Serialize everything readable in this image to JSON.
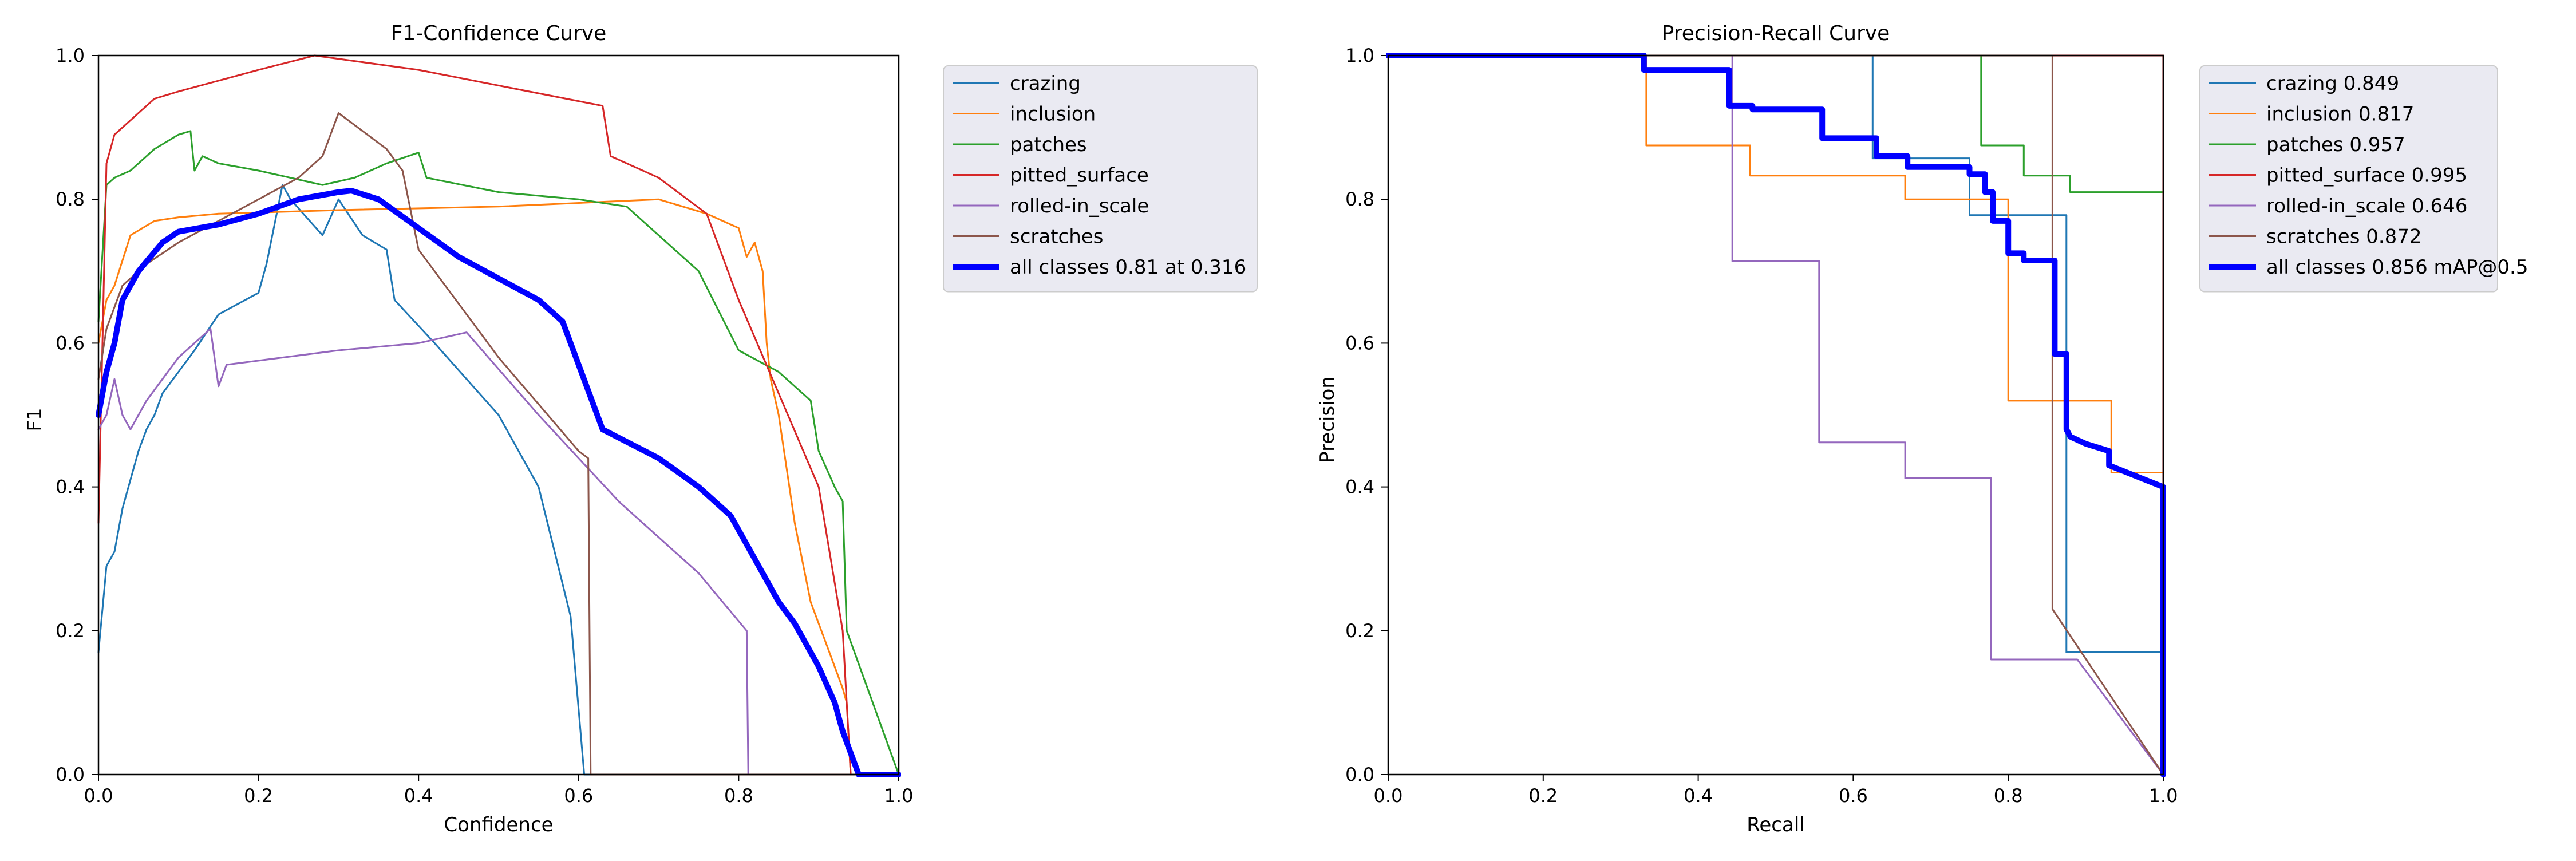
{
  "colors": {
    "crazing": "#1f77b4",
    "inclusion": "#ff7f0e",
    "patches": "#2ca02c",
    "pitted_surface": "#d62728",
    "rolled-in_scale": "#9467bd",
    "scratches": "#8c564b",
    "all_classes": "#0000ff",
    "legend_bg": "#eaeaf2"
  },
  "chart_data": [
    {
      "type": "line",
      "title": "F1-Confidence Curve",
      "xlabel": "Confidence",
      "ylabel": "F1",
      "xlim": [
        0,
        1
      ],
      "ylim": [
        0,
        1
      ],
      "xticks": [
        "0.0",
        "0.2",
        "0.4",
        "0.6",
        "0.8",
        "1.0"
      ],
      "yticks": [
        "0.0",
        "0.2",
        "0.4",
        "0.6",
        "0.8",
        "1.0"
      ],
      "legend_position": "outside-right",
      "series": [
        {
          "key": "crazing",
          "name": "crazing",
          "x": [
            0.0,
            0.01,
            0.02,
            0.03,
            0.04,
            0.05,
            0.06,
            0.07,
            0.08,
            0.1,
            0.12,
            0.15,
            0.2,
            0.21,
            0.23,
            0.24,
            0.28,
            0.3,
            0.33,
            0.36,
            0.37,
            0.42,
            0.5,
            0.55,
            0.59,
            0.607,
            0.608,
            1.0
          ],
          "y": [
            0.17,
            0.29,
            0.31,
            0.37,
            0.41,
            0.45,
            0.48,
            0.5,
            0.53,
            0.56,
            0.59,
            0.64,
            0.67,
            0.71,
            0.82,
            0.8,
            0.75,
            0.8,
            0.75,
            0.73,
            0.66,
            0.6,
            0.5,
            0.4,
            0.22,
            0.0,
            0.0,
            0.0
          ]
        },
        {
          "key": "inclusion",
          "name": "inclusion",
          "x": [
            0.0,
            0.01,
            0.02,
            0.04,
            0.07,
            0.1,
            0.15,
            0.3,
            0.5,
            0.7,
            0.76,
            0.8,
            0.81,
            0.82,
            0.83,
            0.835,
            0.84,
            0.85,
            0.87,
            0.89,
            0.91,
            0.93,
            0.935,
            0.94,
            1.0
          ],
          "y": [
            0.6,
            0.66,
            0.68,
            0.75,
            0.77,
            0.775,
            0.78,
            0.785,
            0.79,
            0.8,
            0.78,
            0.76,
            0.72,
            0.74,
            0.7,
            0.6,
            0.55,
            0.5,
            0.35,
            0.24,
            0.18,
            0.12,
            0.1,
            0.0,
            0.0
          ]
        },
        {
          "key": "patches",
          "name": "patches",
          "x": [
            0.0,
            0.01,
            0.02,
            0.04,
            0.07,
            0.1,
            0.115,
            0.12,
            0.13,
            0.15,
            0.2,
            0.28,
            0.32,
            0.36,
            0.4,
            0.41,
            0.5,
            0.6,
            0.66,
            0.7,
            0.75,
            0.8,
            0.85,
            0.89,
            0.9,
            0.92,
            0.93,
            0.935,
            1.0
          ],
          "y": [
            0.63,
            0.82,
            0.83,
            0.84,
            0.87,
            0.89,
            0.895,
            0.84,
            0.86,
            0.85,
            0.84,
            0.82,
            0.83,
            0.85,
            0.865,
            0.83,
            0.81,
            0.8,
            0.79,
            0.75,
            0.7,
            0.59,
            0.56,
            0.52,
            0.45,
            0.4,
            0.38,
            0.2,
            0.0
          ]
        },
        {
          "key": "pitted_surface",
          "name": "pitted_surface",
          "x": [
            0.0,
            0.01,
            0.02,
            0.05,
            0.07,
            0.1,
            0.2,
            0.27,
            0.4,
            0.63,
            0.64,
            0.7,
            0.76,
            0.8,
            0.85,
            0.9,
            0.93,
            0.94,
            1.0
          ],
          "y": [
            0.35,
            0.85,
            0.89,
            0.92,
            0.94,
            0.95,
            0.98,
            1.0,
            0.98,
            0.93,
            0.86,
            0.83,
            0.78,
            0.66,
            0.53,
            0.4,
            0.2,
            0.0,
            0.0
          ]
        },
        {
          "key": "rolled-in_scale",
          "name": "rolled-in_scale",
          "x": [
            0.0,
            0.01,
            0.02,
            0.03,
            0.04,
            0.06,
            0.08,
            0.1,
            0.14,
            0.15,
            0.16,
            0.3,
            0.4,
            0.46,
            0.55,
            0.65,
            0.75,
            0.81,
            0.812,
            1.0
          ],
          "y": [
            0.48,
            0.5,
            0.55,
            0.5,
            0.48,
            0.52,
            0.55,
            0.58,
            0.62,
            0.54,
            0.57,
            0.59,
            0.6,
            0.615,
            0.5,
            0.38,
            0.28,
            0.2,
            0.0,
            0.0
          ]
        },
        {
          "key": "scratches",
          "name": "scratches",
          "x": [
            0.0,
            0.01,
            0.03,
            0.06,
            0.1,
            0.15,
            0.2,
            0.25,
            0.28,
            0.3,
            0.36,
            0.38,
            0.4,
            0.5,
            0.6,
            0.612,
            0.615,
            1.0
          ],
          "y": [
            0.55,
            0.62,
            0.68,
            0.71,
            0.74,
            0.77,
            0.8,
            0.83,
            0.86,
            0.92,
            0.87,
            0.84,
            0.73,
            0.58,
            0.45,
            0.44,
            0.0,
            0.0
          ]
        },
        {
          "key": "all_classes",
          "name": "all classes 0.81 at 0.316",
          "bold": true,
          "x": [
            0.0,
            0.01,
            0.02,
            0.03,
            0.05,
            0.08,
            0.1,
            0.15,
            0.2,
            0.25,
            0.3,
            0.316,
            0.35,
            0.4,
            0.45,
            0.5,
            0.55,
            0.58,
            0.6,
            0.63,
            0.7,
            0.75,
            0.79,
            0.82,
            0.85,
            0.87,
            0.9,
            0.92,
            0.93,
            0.95,
            0.97,
            1.0
          ],
          "y": [
            0.5,
            0.56,
            0.6,
            0.66,
            0.7,
            0.74,
            0.755,
            0.765,
            0.78,
            0.8,
            0.81,
            0.812,
            0.8,
            0.76,
            0.72,
            0.69,
            0.66,
            0.63,
            0.57,
            0.48,
            0.44,
            0.4,
            0.36,
            0.3,
            0.24,
            0.21,
            0.15,
            0.1,
            0.06,
            0.0,
            0.0,
            0.0
          ]
        }
      ]
    },
    {
      "type": "line",
      "title": "Precision-Recall Curve",
      "xlabel": "Recall",
      "ylabel": "Precision",
      "xlim": [
        0,
        1
      ],
      "ylim": [
        0,
        1
      ],
      "xticks": [
        "0.0",
        "0.2",
        "0.4",
        "0.6",
        "0.8",
        "1.0"
      ],
      "yticks": [
        "0.0",
        "0.2",
        "0.4",
        "0.6",
        "0.8",
        "1.0"
      ],
      "legend_position": "outside-right",
      "series": [
        {
          "key": "crazing",
          "name": "crazing 0.849",
          "x": [
            0.0,
            0.625,
            0.625,
            0.75,
            0.75,
            0.875,
            0.875,
            1.0,
            1.0
          ],
          "y": [
            1.0,
            1.0,
            0.857,
            0.857,
            0.778,
            0.778,
            0.17,
            0.17,
            0.0
          ]
        },
        {
          "key": "inclusion",
          "name": "inclusion 0.817",
          "x": [
            0.0,
            0.333,
            0.333,
            0.467,
            0.467,
            0.667,
            0.667,
            0.8,
            0.8,
            0.933,
            0.933,
            1.0,
            1.0
          ],
          "y": [
            1.0,
            1.0,
            0.875,
            0.875,
            0.833,
            0.833,
            0.8,
            0.8,
            0.52,
            0.52,
            0.42,
            0.42,
            0.0
          ]
        },
        {
          "key": "patches",
          "name": "patches 0.957",
          "x": [
            0.0,
            0.765,
            0.765,
            0.82,
            0.82,
            0.88,
            0.88,
            1.0,
            1.0
          ],
          "y": [
            1.0,
            1.0,
            0.875,
            0.875,
            0.833,
            0.833,
            0.81,
            0.81,
            0.0
          ]
        },
        {
          "key": "pitted_surface",
          "name": "pitted_surface 0.995",
          "x": [
            0.0,
            1.0,
            1.0
          ],
          "y": [
            1.0,
            1.0,
            0.0
          ]
        },
        {
          "key": "rolled-in_scale",
          "name": "rolled-in_scale 0.646",
          "x": [
            0.0,
            0.444,
            0.444,
            0.556,
            0.556,
            0.667,
            0.667,
            0.778,
            0.778,
            0.889,
            1.0
          ],
          "y": [
            1.0,
            1.0,
            0.714,
            0.714,
            0.462,
            0.462,
            0.412,
            0.412,
            0.16,
            0.16,
            0.0
          ]
        },
        {
          "key": "scratches",
          "name": "scratches 0.872",
          "x": [
            0.0,
            0.857,
            0.857,
            1.0
          ],
          "y": [
            1.0,
            1.0,
            0.23,
            0.0
          ]
        },
        {
          "key": "all_classes",
          "name": "all classes 0.856 mAP@0.5",
          "bold": true,
          "x": [
            0.0,
            0.33,
            0.33,
            0.44,
            0.44,
            0.47,
            0.47,
            0.56,
            0.56,
            0.63,
            0.63,
            0.67,
            0.67,
            0.75,
            0.75,
            0.77,
            0.77,
            0.78,
            0.78,
            0.8,
            0.8,
            0.82,
            0.82,
            0.86,
            0.86,
            0.875,
            0.875,
            0.88,
            0.9,
            0.93,
            0.93,
            1.0,
            1.0
          ],
          "y": [
            1.0,
            1.0,
            0.98,
            0.98,
            0.93,
            0.93,
            0.925,
            0.925,
            0.885,
            0.885,
            0.86,
            0.86,
            0.845,
            0.845,
            0.835,
            0.835,
            0.81,
            0.81,
            0.77,
            0.77,
            0.725,
            0.725,
            0.715,
            0.715,
            0.585,
            0.585,
            0.48,
            0.47,
            0.46,
            0.45,
            0.43,
            0.4,
            0.0
          ]
        }
      ]
    }
  ]
}
